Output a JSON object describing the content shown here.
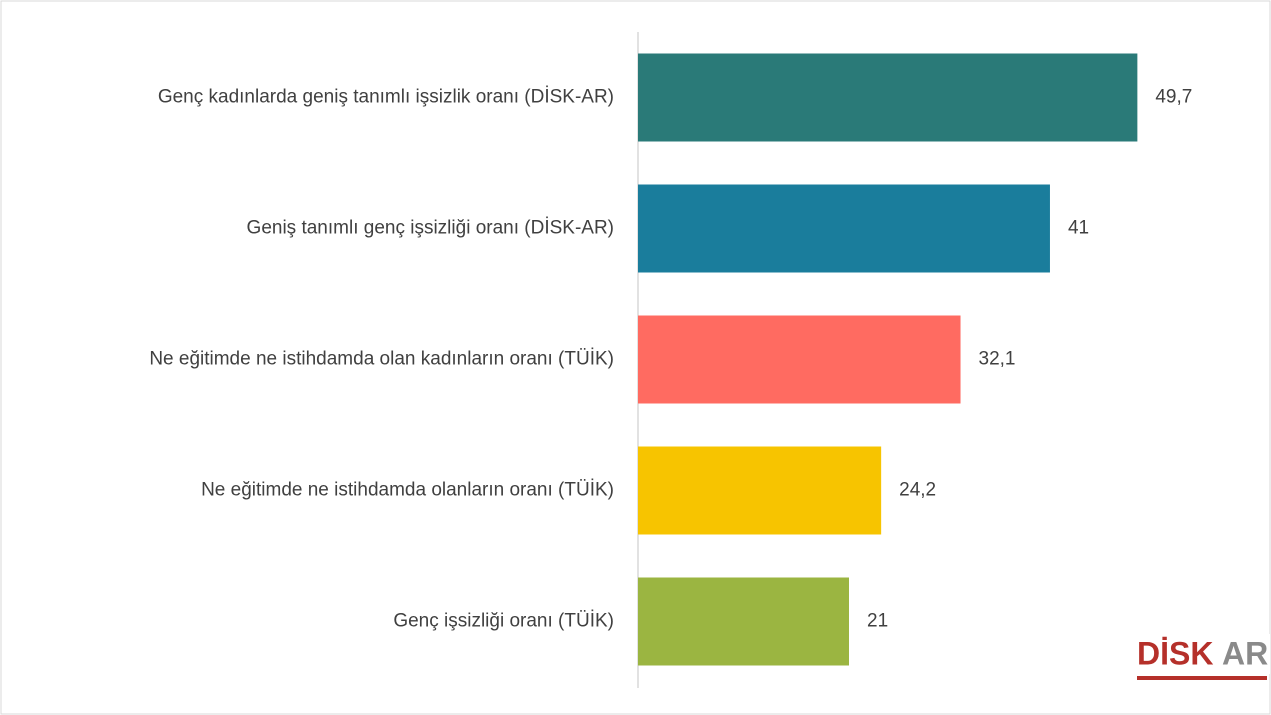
{
  "chart_data": {
    "type": "hbar",
    "categories": [
      "Genç kadınlarda geniş tanımlı işsizlik oranı (DİSK-AR)",
      "Geniş tanımlı genç işsizliği oranı (DİSK-AR)",
      "Ne eğitimde ne istihdamda olan kadınların oranı (TÜİK)",
      "Ne eğitimde ne istihdamda olanların oranı (TÜİK)",
      "Genç işsizliği oranı (TÜİK)"
    ],
    "values": [
      49.7,
      41,
      32.1,
      24.2,
      21
    ],
    "value_labels": [
      "49,7",
      "41",
      "32,1",
      "24,2",
      "21"
    ],
    "colors": [
      "#2a7a78",
      "#1a7d9c",
      "#ff6b61",
      "#f7c400",
      "#9bb541"
    ],
    "xlim": [
      0,
      63
    ]
  },
  "logo": {
    "left": "DİSK",
    "right": "AR"
  }
}
